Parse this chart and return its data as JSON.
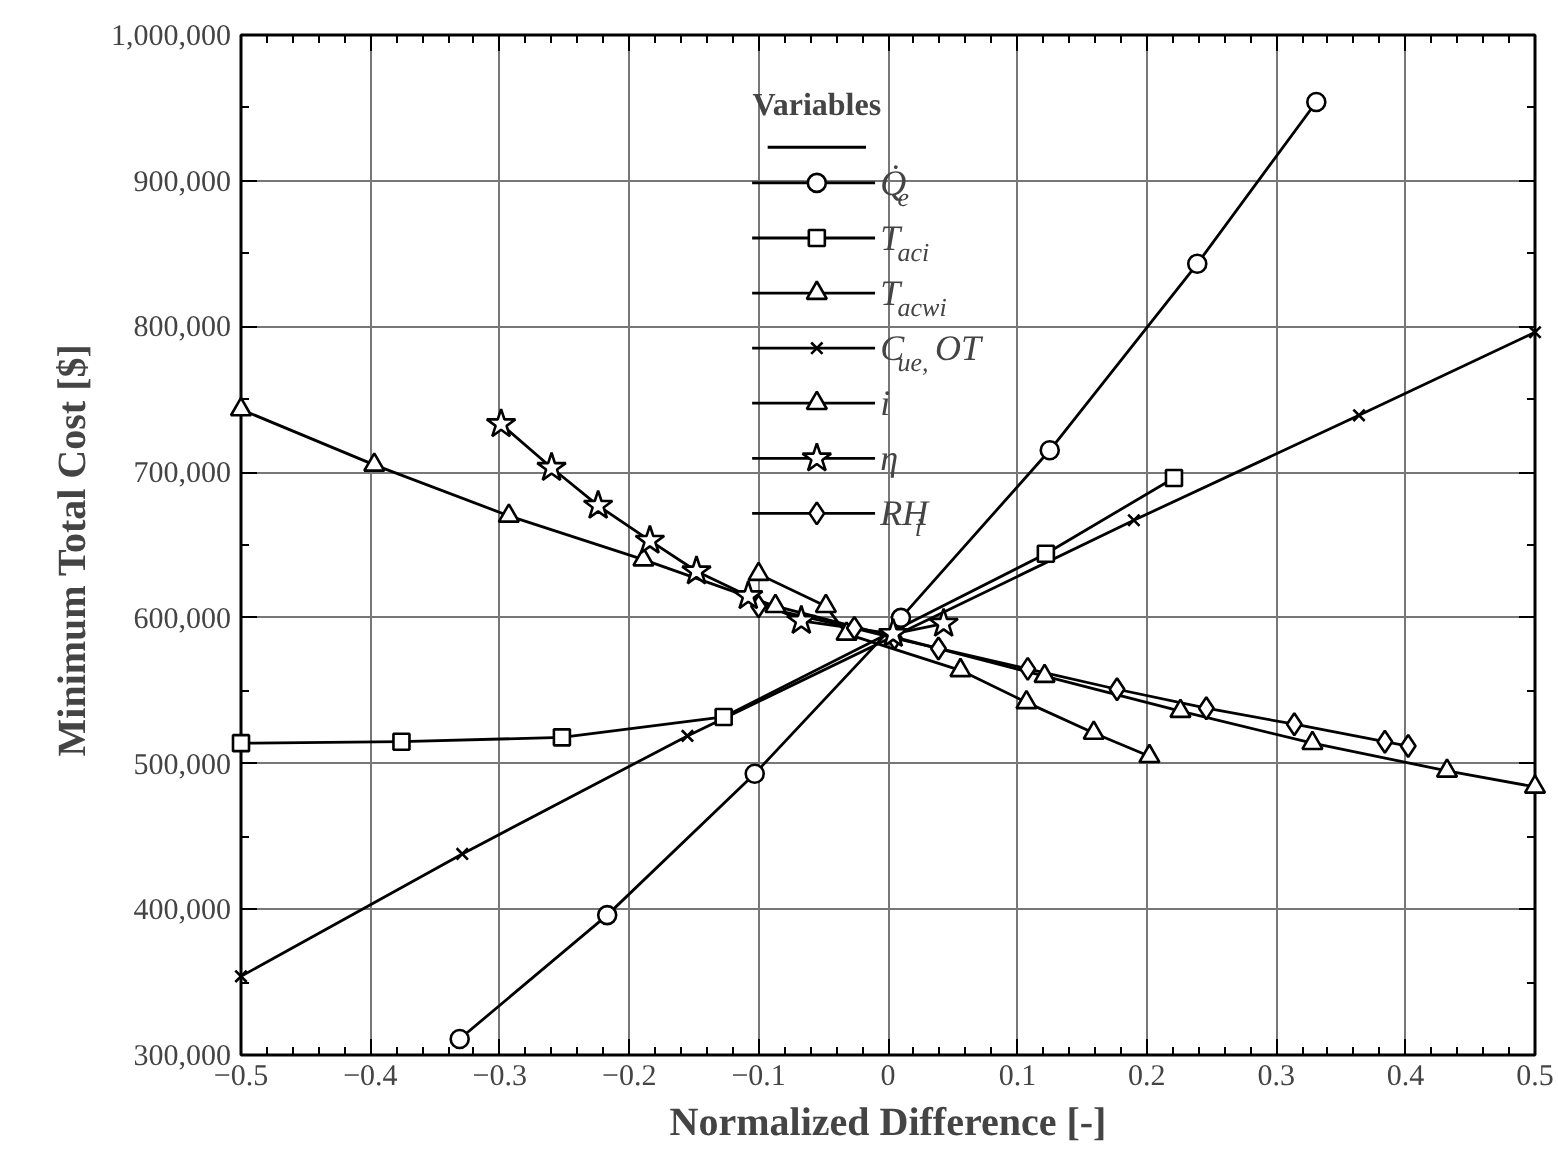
{
  "chart_data": {
    "type": "line",
    "xlabel": "Normalized Difference [-]",
    "ylabel": "Minimum Total Cost  [$]",
    "legend_title": "Variables",
    "xlim": [
      -0.5,
      0.5
    ],
    "ylim": [
      300000,
      1000000
    ],
    "xticks": [
      -0.5,
      -0.4,
      -0.3,
      -0.2,
      -0.1,
      0,
      0.1,
      0.2,
      0.3,
      0.4,
      0.5
    ],
    "yticks": [
      {
        "value": 300000,
        "label": "300,000"
      },
      {
        "value": 400000,
        "label": "400,000"
      },
      {
        "value": 500000,
        "label": "500,000"
      },
      {
        "value": 600000,
        "label": "600,000"
      },
      {
        "value": 700000,
        "label": "700,000"
      },
      {
        "value": 800000,
        "label": "800,000"
      },
      {
        "value": 900000,
        "label": "900,000"
      },
      {
        "value": 1000000,
        "label": "1,000,000"
      }
    ],
    "grid": true,
    "legend": "top",
    "line_style": "solid",
    "series": [
      {
        "name": "Q̇$_{e}$",
        "color": "#000000",
        "marker": "circle",
        "x": [
          -0.331,
          -0.217,
          -0.103,
          0.01,
          0.125,
          0.239,
          0.331
        ],
        "values": [
          311000,
          396000,
          493000,
          600000,
          715000,
          843000,
          954000
        ]
      },
      {
        "name": "T$_{aci}$",
        "color": "#000000",
        "marker": "square",
        "x": [
          -0.5,
          -0.376,
          -0.252,
          -0.127,
          0.122,
          0.221
        ],
        "values": [
          514000,
          515000,
          518000,
          532000,
          644000,
          696000
        ]
      },
      {
        "name": "T$_{acwi}$",
        "color": "#000000",
        "marker": "triangle",
        "x": [
          -0.1,
          -0.048,
          -0.032,
          0.056,
          0.107,
          0.159,
          0.202
        ],
        "values": [
          630000,
          608000,
          589000,
          564000,
          542000,
          521000,
          505000
        ]
      },
      {
        "name": "C$_{ue,}$ OT",
        "color": "#000000",
        "marker": "cross",
        "x": [
          -0.5,
          -0.329,
          -0.155,
          0.19,
          0.364,
          0.5
        ],
        "values": [
          354000,
          438000,
          519000,
          667000,
          739000,
          796000
        ]
      },
      {
        "name": "i",
        "color": "#000000",
        "marker": "triangle",
        "x": [
          -0.5,
          -0.397,
          -0.293,
          -0.189,
          -0.087,
          0.121,
          0.226,
          0.328,
          0.432,
          0.5
        ],
        "values": [
          743000,
          705000,
          670000,
          640000,
          608000,
          560000,
          536000,
          514000,
          495000,
          484000
        ]
      },
      {
        "name": "η",
        "color": "#000000",
        "marker": "star",
        "x": [
          -0.299,
          -0.26,
          -0.224,
          -0.184,
          -0.148,
          -0.108,
          -0.067,
          0.004,
          0.043
        ],
        "values": [
          733000,
          703000,
          677000,
          653000,
          632000,
          615000,
          598000,
          589000,
          596000
        ]
      },
      {
        "name": "RH$_{i}$",
        "color": "#000000",
        "marker": "diamond",
        "x": [
          -0.1,
          -0.026,
          0.005,
          0.039,
          0.108,
          0.177,
          0.246,
          0.314,
          0.384,
          0.402
        ],
        "values": [
          608000,
          593000,
          586000,
          579000,
          565000,
          551000,
          538000,
          527000,
          515000,
          512000
        ]
      }
    ]
  }
}
